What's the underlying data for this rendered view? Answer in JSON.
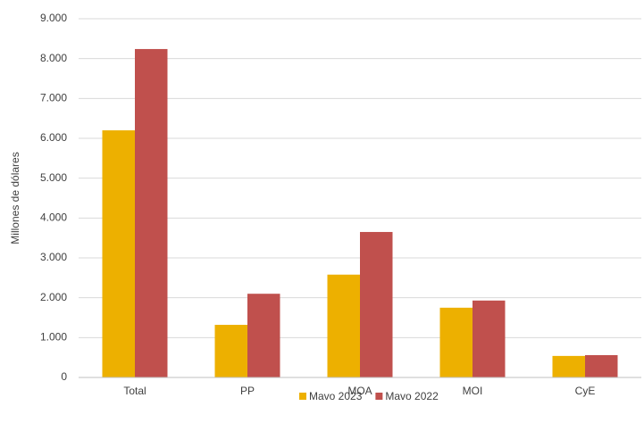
{
  "chart_data": {
    "type": "bar",
    "y_label": "Millones de dólares",
    "categories": [
      "Total",
      "PP",
      "MOA",
      "MOI",
      "CyE"
    ],
    "series": [
      {
        "name": "Mavo 2023",
        "color": "#edb000",
        "values": [
          6200,
          1320,
          2580,
          1750,
          540
        ]
      },
      {
        "name": "Mavo 2022",
        "color": "#c0504d",
        "values": [
          8240,
          2100,
          3650,
          1930,
          560
        ]
      }
    ],
    "ylim": [
      0,
      9000
    ],
    "yticks": [
      0,
      {
        "value": 1000,
        "label": "1.000"
      },
      {
        "value": 2000,
        "label": "2.000"
      },
      {
        "value": 3000,
        "label": "3.000"
      },
      {
        "value": 4000,
        "label": "4.000"
      },
      {
        "value": 5000,
        "label": "5.000"
      },
      {
        "value": 6000,
        "label": "6.000"
      },
      {
        "value": 7000,
        "label": "7.000"
      },
      {
        "value": 8000,
        "label": "8.000"
      },
      {
        "value": 9000,
        "label": "9.000"
      }
    ],
    "grid": true,
    "legend": "bottom"
  }
}
